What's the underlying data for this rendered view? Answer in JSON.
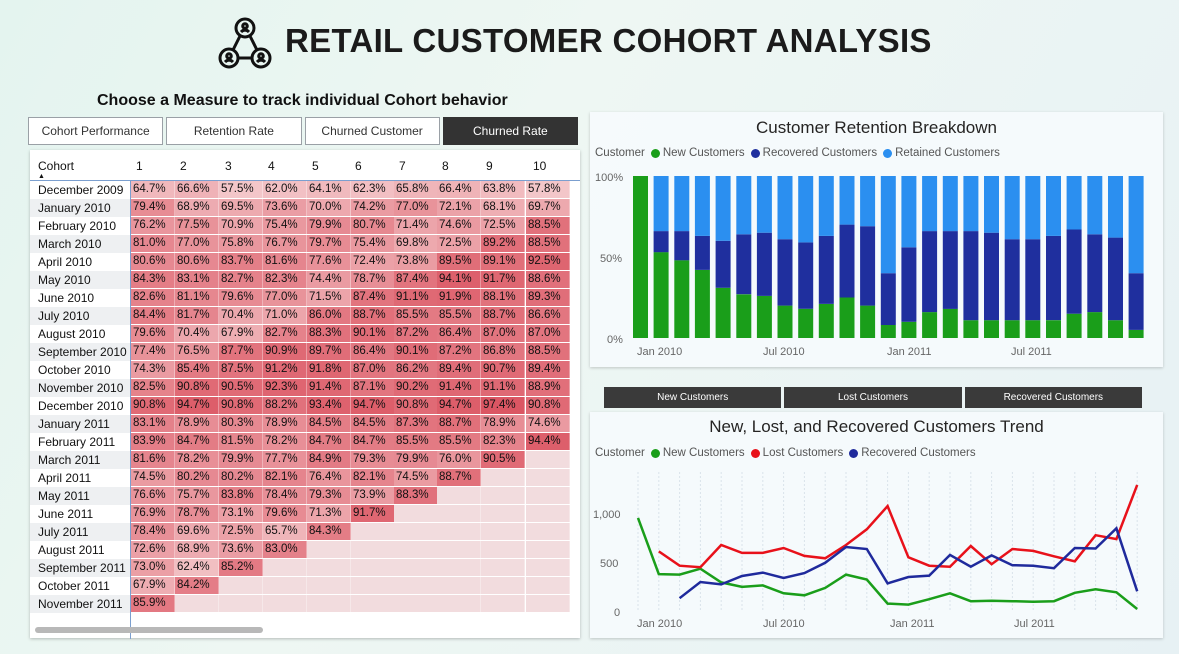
{
  "header": {
    "title": "RETAIL CUSTOMER COHORT ANALYSIS",
    "subtitle": "Choose a Measure to track individual Cohort behavior"
  },
  "measures": {
    "buttons": [
      "Cohort Performance",
      "Retention Rate",
      "Churned Customer",
      "Churned Rate"
    ],
    "active_index": 3
  },
  "cohort_table": {
    "corner_label": "Cohort",
    "columns": [
      "1",
      "2",
      "3",
      "4",
      "5",
      "6",
      "7",
      "8",
      "9",
      "10"
    ],
    "rows": [
      {
        "label": "December 2009",
        "values": [
          "64.7%",
          "66.6%",
          "57.5%",
          "62.0%",
          "64.1%",
          "62.3%",
          "65.8%",
          "66.4%",
          "63.8%",
          "57.8%"
        ]
      },
      {
        "label": "January 2010",
        "values": [
          "79.4%",
          "68.9%",
          "69.5%",
          "73.6%",
          "70.0%",
          "74.2%",
          "77.0%",
          "72.1%",
          "68.1%",
          "69.7%"
        ]
      },
      {
        "label": "February 2010",
        "values": [
          "76.2%",
          "77.5%",
          "70.9%",
          "75.4%",
          "79.9%",
          "80.7%",
          "71.4%",
          "74.6%",
          "72.5%",
          "88.5%"
        ]
      },
      {
        "label": "March 2010",
        "values": [
          "81.0%",
          "77.0%",
          "75.8%",
          "76.7%",
          "79.7%",
          "75.4%",
          "69.8%",
          "72.5%",
          "89.2%",
          "88.5%"
        ]
      },
      {
        "label": "April 2010",
        "values": [
          "80.6%",
          "80.6%",
          "83.7%",
          "81.6%",
          "77.6%",
          "72.4%",
          "73.8%",
          "89.5%",
          "89.1%",
          "92.5%"
        ]
      },
      {
        "label": "May 2010",
        "values": [
          "84.3%",
          "83.1%",
          "82.7%",
          "82.3%",
          "74.4%",
          "78.7%",
          "87.4%",
          "94.1%",
          "91.7%",
          "88.6%"
        ]
      },
      {
        "label": "June 2010",
        "values": [
          "82.6%",
          "81.1%",
          "79.6%",
          "77.0%",
          "71.5%",
          "87.4%",
          "91.1%",
          "91.9%",
          "88.1%",
          "89.3%"
        ]
      },
      {
        "label": "July 2010",
        "values": [
          "84.4%",
          "81.7%",
          "70.4%",
          "71.0%",
          "86.0%",
          "88.7%",
          "85.5%",
          "85.5%",
          "88.7%",
          "86.6%"
        ]
      },
      {
        "label": "August 2010",
        "values": [
          "79.6%",
          "70.4%",
          "67.9%",
          "82.7%",
          "88.3%",
          "90.1%",
          "87.2%",
          "86.4%",
          "87.0%",
          "87.0%"
        ]
      },
      {
        "label": "September 2010",
        "values": [
          "77.4%",
          "76.5%",
          "87.7%",
          "90.9%",
          "89.7%",
          "86.4%",
          "90.1%",
          "87.2%",
          "86.8%",
          "88.5%"
        ]
      },
      {
        "label": "October 2010",
        "values": [
          "74.3%",
          "85.4%",
          "87.5%",
          "91.2%",
          "91.8%",
          "87.0%",
          "86.2%",
          "89.4%",
          "90.7%",
          "89.4%"
        ]
      },
      {
        "label": "November 2010",
        "values": [
          "82.5%",
          "90.8%",
          "90.5%",
          "92.3%",
          "91.4%",
          "87.1%",
          "90.2%",
          "91.4%",
          "91.1%",
          "88.9%"
        ]
      },
      {
        "label": "December 2010",
        "values": [
          "90.8%",
          "94.7%",
          "90.8%",
          "88.2%",
          "93.4%",
          "94.7%",
          "90.8%",
          "94.7%",
          "97.4%",
          "90.8%"
        ]
      },
      {
        "label": "January 2011",
        "values": [
          "83.1%",
          "78.9%",
          "80.3%",
          "78.9%",
          "84.5%",
          "84.5%",
          "87.3%",
          "88.7%",
          "78.9%",
          "74.6%"
        ]
      },
      {
        "label": "February 2011",
        "values": [
          "83.9%",
          "84.7%",
          "81.5%",
          "78.2%",
          "84.7%",
          "84.7%",
          "85.5%",
          "85.5%",
          "82.3%",
          "94.4%"
        ]
      },
      {
        "label": "March 2011",
        "values": [
          "81.6%",
          "78.2%",
          "79.9%",
          "77.7%",
          "84.9%",
          "79.3%",
          "79.9%",
          "76.0%",
          "90.5%"
        ]
      },
      {
        "label": "April 2011",
        "values": [
          "74.5%",
          "80.2%",
          "80.2%",
          "82.1%",
          "76.4%",
          "82.1%",
          "74.5%",
          "88.7%"
        ]
      },
      {
        "label": "May 2011",
        "values": [
          "76.6%",
          "75.7%",
          "83.8%",
          "78.4%",
          "79.3%",
          "73.9%",
          "88.3%"
        ]
      },
      {
        "label": "June 2011",
        "values": [
          "76.9%",
          "78.7%",
          "73.1%",
          "79.6%",
          "71.3%",
          "91.7%"
        ]
      },
      {
        "label": "July 2011",
        "values": [
          "78.4%",
          "69.6%",
          "72.5%",
          "65.7%",
          "84.3%"
        ]
      },
      {
        "label": "August 2011",
        "values": [
          "72.6%",
          "68.9%",
          "73.6%",
          "83.0%"
        ]
      },
      {
        "label": "September 2011",
        "values": [
          "73.0%",
          "62.4%",
          "85.2%"
        ]
      },
      {
        "label": "October 2011",
        "values": [
          "67.9%",
          "84.2%"
        ]
      },
      {
        "label": "November 2011",
        "values": [
          "85.9%"
        ]
      }
    ],
    "heat_colors": {
      "low": "#f3c6c9",
      "high": "#db5461",
      "empty": "#f2dcde"
    }
  },
  "retention_chart": {
    "title": "Customer Retention Breakdown",
    "legend_title": "Customer",
    "series_labels": [
      "New Customers",
      "Recovered Customers",
      "Retained Customers"
    ],
    "colors": {
      "new": "#1a9e1a",
      "recovered": "#1f2f9e",
      "retained": "#2b8ff0"
    },
    "y_ticks": [
      "100%",
      "50%",
      "0%"
    ],
    "x_ticks": [
      "Jan 2010",
      "Jul 2010",
      "Jan 2011",
      "Jul 2011"
    ]
  },
  "trend_buttons": [
    "New Customers",
    "Lost Customers",
    "Recovered Customers"
  ],
  "trend_chart": {
    "title": "New, Lost, and Recovered Customers Trend",
    "legend_title": "Customer",
    "series_labels": [
      "New Customers",
      "Lost Customers",
      "Recovered Customers"
    ],
    "colors": {
      "new": "#1a9e1a",
      "lost": "#e8111a",
      "recovered": "#1f2a9c"
    },
    "y_ticks": [
      "1,000",
      "500",
      "0"
    ],
    "x_ticks": [
      "Jan 2010",
      "Jul 2010",
      "Jan 2011",
      "Jul 2011"
    ]
  },
  "chart_data": [
    {
      "type": "bar",
      "title": "Customer Retention Breakdown",
      "stacked": true,
      "ylim": [
        0,
        1
      ],
      "categories": [
        "Dec 2009",
        "Jan 2010",
        "Feb 2010",
        "Mar 2010",
        "Apr 2010",
        "May 2010",
        "Jun 2010",
        "Jul 2010",
        "Aug 2010",
        "Sep 2010",
        "Oct 2010",
        "Nov 2010",
        "Dec 2010",
        "Jan 2011",
        "Feb 2011",
        "Mar 2011",
        "Apr 2011",
        "May 2011",
        "Jun 2011",
        "Jul 2011",
        "Aug 2011",
        "Sep 2011",
        "Oct 2011",
        "Nov 2011",
        "Dec 2011"
      ],
      "series": [
        {
          "name": "New Customers",
          "values": [
            1.0,
            0.53,
            0.48,
            0.42,
            0.31,
            0.27,
            0.26,
            0.2,
            0.18,
            0.21,
            0.25,
            0.2,
            0.08,
            0.1,
            0.16,
            0.18,
            0.11,
            0.11,
            0.11,
            0.11,
            0.11,
            0.15,
            0.16,
            0.11,
            0.05
          ]
        },
        {
          "name": "Recovered Customers",
          "values": [
            0.0,
            0.13,
            0.18,
            0.21,
            0.29,
            0.37,
            0.39,
            0.41,
            0.41,
            0.42,
            0.45,
            0.49,
            0.32,
            0.46,
            0.5,
            0.48,
            0.55,
            0.54,
            0.5,
            0.5,
            0.52,
            0.52,
            0.48,
            0.51,
            0.35
          ]
        },
        {
          "name": "Retained Customers",
          "values": [
            0.0,
            0.34,
            0.34,
            0.37,
            0.4,
            0.36,
            0.35,
            0.39,
            0.41,
            0.37,
            0.3,
            0.31,
            0.6,
            0.44,
            0.34,
            0.34,
            0.34,
            0.35,
            0.39,
            0.39,
            0.37,
            0.33,
            0.36,
            0.38,
            0.6
          ]
        }
      ]
    },
    {
      "type": "line",
      "title": "New, Lost, and Recovered Customers Trend",
      "ylim": [
        0,
        1300
      ],
      "x": [
        "Dec 2009",
        "Jan 2010",
        "Feb 2010",
        "Mar 2010",
        "Apr 2010",
        "May 2010",
        "Jun 2010",
        "Jul 2010",
        "Aug 2010",
        "Sep 2010",
        "Oct 2010",
        "Nov 2010",
        "Dec 2010",
        "Jan 2011",
        "Feb 2011",
        "Mar 2011",
        "Apr 2011",
        "May 2011",
        "Jun 2011",
        "Jul 2011",
        "Aug 2011",
        "Sep 2011",
        "Oct 2011",
        "Nov 2011",
        "Dec 2011"
      ],
      "series": [
        {
          "name": "New Customers",
          "values": [
            955,
            385,
            380,
            440,
            300,
            255,
            270,
            190,
            170,
            245,
            380,
            330,
            85,
            75,
            130,
            190,
            110,
            115,
            110,
            105,
            110,
            195,
            230,
            200,
            30
          ]
        },
        {
          "name": "Lost Customers",
          "values": [
            null,
            615,
            470,
            455,
            680,
            600,
            600,
            650,
            570,
            545,
            680,
            840,
            1075,
            555,
            470,
            460,
            670,
            485,
            640,
            620,
            565,
            515,
            780,
            740,
            1290
          ]
        },
        {
          "name": "Recovered Customers",
          "values": [
            null,
            null,
            140,
            305,
            280,
            365,
            400,
            345,
            395,
            500,
            660,
            640,
            290,
            355,
            370,
            580,
            460,
            575,
            475,
            470,
            445,
            650,
            645,
            850,
            210
          ]
        }
      ]
    }
  ]
}
